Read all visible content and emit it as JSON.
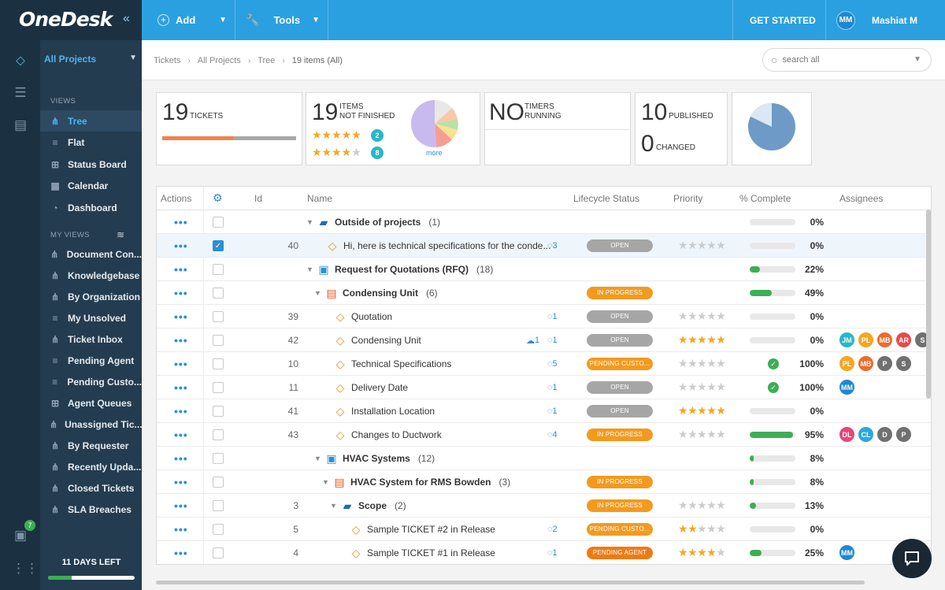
{
  "app": {
    "logo": "OneDesk"
  },
  "topbar": {
    "add_label": "Add",
    "tools_label": "Tools",
    "get_started": "GET STARTED",
    "user_initials": "MM",
    "user_name": "Mashiat M"
  },
  "sidebar": {
    "project": "All Projects",
    "views_heading": "VIEWS",
    "views": [
      {
        "label": "Tree",
        "icon": "tree-icon",
        "active": true
      },
      {
        "label": "Flat",
        "icon": "list-icon"
      },
      {
        "label": "Status Board",
        "icon": "board-icon"
      },
      {
        "label": "Calendar",
        "icon": "calendar-icon"
      },
      {
        "label": "Dashboard",
        "icon": "dashboard-icon"
      }
    ],
    "my_views_heading": "MY VIEWS",
    "my_views": [
      {
        "label": "Document Con...",
        "icon": "tree-icon"
      },
      {
        "label": "Knowledgebase",
        "icon": "tree-icon"
      },
      {
        "label": "By Organization",
        "icon": "tree-icon"
      },
      {
        "label": "My Unsolved",
        "icon": "list-icon"
      },
      {
        "label": "Ticket Inbox",
        "icon": "tree-icon"
      },
      {
        "label": "Pending Agent",
        "icon": "list-icon"
      },
      {
        "label": "Pending Custo...",
        "icon": "list-icon"
      },
      {
        "label": "Agent Queues",
        "icon": "board-icon"
      },
      {
        "label": "Unassigned Tic...",
        "icon": "tree-icon"
      },
      {
        "label": "By Requester",
        "icon": "tree-icon"
      },
      {
        "label": "Recently Upda...",
        "icon": "tree-icon"
      },
      {
        "label": "Closed Tickets",
        "icon": "tree-icon"
      },
      {
        "label": "SLA Breaches",
        "icon": "tree-icon"
      }
    ],
    "days_left": "11 DAYS LEFT",
    "days_progress": 0.27,
    "rail_badge": "7"
  },
  "breadcrumb": [
    "Tickets",
    "All Projects",
    "Tree",
    "19 items (All)"
  ],
  "search": {
    "placeholder": "search all"
  },
  "cards": {
    "tickets": {
      "num": "19",
      "label": "TICKETS"
    },
    "not_finished": {
      "num": "19",
      "label1": "ITEMS",
      "label2": "NOT FINISHED",
      "badge1": "2",
      "badge2": "8",
      "more": "more"
    },
    "timers": {
      "num": "NO",
      "label1": "TIMERS",
      "label2": "RUNNING"
    },
    "published": {
      "num": "10",
      "label": "PUBLISHED",
      "num2": "0",
      "label2": "CHANGED"
    }
  },
  "table": {
    "headers": {
      "actions": "Actions",
      "id": "Id",
      "name": "Name",
      "lifecycle": "Lifecycle Status",
      "priority": "Priority",
      "complete": "% Complete",
      "assignees": "Assignees"
    },
    "rows": [
      {
        "id": "",
        "name": "Outside of projects",
        "count": "(1)",
        "type": "folder",
        "indent": 190,
        "bold": true,
        "status": "",
        "priority": null,
        "pct": "0%",
        "progress": 0,
        "msgs": "",
        "att": "",
        "check": false,
        "assignees": []
      },
      {
        "id": "40",
        "name": "Hi, here is technical specifications for the conde...",
        "count": "",
        "type": "ticket",
        "indent": 214,
        "bold": false,
        "status": "OPEN",
        "st": "open",
        "priority": 0,
        "pct": "0%",
        "progress": 0,
        "msgs": "3",
        "att": "",
        "check": false,
        "selected": true,
        "assignees": []
      },
      {
        "id": "",
        "name": "Request for Quotations (RFQ)",
        "count": "(18)",
        "type": "proj",
        "indent": 190,
        "bold": true,
        "status": "",
        "priority": null,
        "pct": "22%",
        "progress": 22,
        "msgs": "",
        "att": "",
        "check": false,
        "assignees": []
      },
      {
        "id": "",
        "name": "Condensing Unit",
        "count": "(6)",
        "type": "rfq",
        "indent": 200,
        "bold": true,
        "status": "IN PROGRESS",
        "st": "prog",
        "priority": null,
        "pct": "49%",
        "progress": 49,
        "msgs": "",
        "att": "",
        "check": false,
        "assignees": []
      },
      {
        "id": "39",
        "name": "Quotation",
        "count": "",
        "type": "ticket",
        "indent": 224,
        "bold": false,
        "status": "OPEN",
        "st": "open",
        "priority": 0,
        "pct": "0%",
        "progress": 0,
        "msgs": "1",
        "att": "",
        "check": false,
        "assignees": []
      },
      {
        "id": "42",
        "name": "Condensing Unit",
        "count": "",
        "type": "ticket",
        "indent": 224,
        "bold": false,
        "status": "OPEN",
        "st": "open",
        "priority": 5,
        "pct": "0%",
        "progress": 0,
        "msgs": "1",
        "att": "1",
        "check": false,
        "assignees": [
          {
            "i": "JM",
            "c": "#29b6c8"
          },
          {
            "i": "PL",
            "c": "#f5a623"
          },
          {
            "i": "MB",
            "c": "#ef6a2a"
          },
          {
            "i": "AR",
            "c": "#e64a4a"
          },
          {
            "i": "S",
            "c": "#707070"
          },
          {
            "i": "",
            "c": "#707070"
          }
        ]
      },
      {
        "id": "10",
        "name": "Technical Specifications",
        "count": "",
        "type": "ticket",
        "indent": 224,
        "bold": false,
        "status": "PENDING CUSTO...",
        "st": "pend",
        "priority": 0,
        "pct": "100%",
        "progress": 100,
        "msgs": "5",
        "att": "",
        "check": true,
        "assignees": [
          {
            "i": "PL",
            "c": "#f5a623"
          },
          {
            "i": "MB",
            "c": "#ef6a2a"
          },
          {
            "i": "P",
            "c": "#707070"
          },
          {
            "i": "S",
            "c": "#707070"
          }
        ]
      },
      {
        "id": "11",
        "name": "Delivery Date",
        "count": "",
        "type": "ticket",
        "indent": 224,
        "bold": false,
        "status": "OPEN",
        "st": "open",
        "priority": 0,
        "pct": "100%",
        "progress": 100,
        "msgs": "1",
        "att": "",
        "check": true,
        "assignees": [
          {
            "i": "MM",
            "c": "#1e88d0"
          }
        ]
      },
      {
        "id": "41",
        "name": "Installation Location",
        "count": "",
        "type": "ticket",
        "indent": 224,
        "bold": false,
        "status": "OPEN",
        "st": "open",
        "priority": 5,
        "pct": "0%",
        "progress": 0,
        "msgs": "1",
        "att": "",
        "check": false,
        "assignees": []
      },
      {
        "id": "43",
        "name": "Changes to Ductwork",
        "count": "",
        "type": "ticket",
        "indent": 224,
        "bold": false,
        "status": "IN PROGRESS",
        "st": "prog",
        "priority": 0,
        "pct": "95%",
        "progress": 95,
        "msgs": "4",
        "att": "",
        "check": false,
        "assignees": [
          {
            "i": "DL",
            "c": "#e6457a"
          },
          {
            "i": "CL",
            "c": "#29a8e0"
          },
          {
            "i": "D",
            "c": "#707070"
          },
          {
            "i": "P",
            "c": "#707070"
          }
        ]
      },
      {
        "id": "",
        "name": "HVAC Systems",
        "count": "(12)",
        "type": "proj",
        "indent": 200,
        "bold": true,
        "status": "",
        "priority": null,
        "pct": "8%",
        "progress": 8,
        "msgs": "",
        "att": "",
        "check": false,
        "assignees": []
      },
      {
        "id": "",
        "name": "HVAC System for RMS  Bowden",
        "count": "(3)",
        "type": "rfq",
        "indent": 210,
        "bold": true,
        "status": "IN PROGRESS",
        "st": "prog",
        "priority": null,
        "pct": "8%",
        "progress": 8,
        "msgs": "",
        "att": "",
        "check": false,
        "assignees": []
      },
      {
        "id": "3",
        "name": "Scope",
        "count": "(2)",
        "type": "folder",
        "indent": 220,
        "bold": true,
        "status": "IN PROGRESS",
        "st": "prog",
        "priority": 0,
        "pct": "13%",
        "progress": 13,
        "msgs": "",
        "att": "",
        "check": false,
        "assignees": []
      },
      {
        "id": "5",
        "name": "Sample TICKET #2 in Release",
        "count": "",
        "type": "ticket",
        "indent": 244,
        "bold": false,
        "status": "PENDING CUSTO...",
        "st": "pend",
        "priority": 2,
        "pct": "0%",
        "progress": 0,
        "msgs": "2",
        "att": "",
        "check": false,
        "assignees": []
      },
      {
        "id": "4",
        "name": "Sample TICKET #1 in Release",
        "count": "",
        "type": "ticket",
        "indent": 244,
        "bold": false,
        "status": "PENDING AGENT",
        "st": "agent",
        "priority": 4,
        "pct": "25%",
        "progress": 25,
        "msgs": "1",
        "att": "",
        "check": false,
        "assignees": [
          {
            "i": "MM",
            "c": "#1e88d0"
          }
        ]
      }
    ]
  }
}
